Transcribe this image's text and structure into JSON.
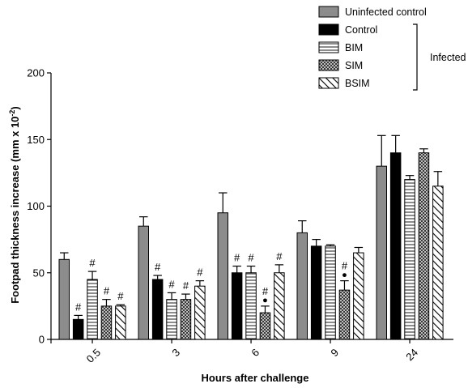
{
  "chart_data": {
    "type": "bar",
    "title": "",
    "xlabel": "Hours after challenge",
    "ylabel": "Footpad thickness increase (mm x 10",
    "ylabel_sup": "-2",
    "ylabel_close": ")",
    "ylim": [
      0,
      200
    ],
    "yticks": [
      "0",
      "50",
      "100",
      "150",
      "200"
    ],
    "yticks_values": [
      0,
      50,
      100,
      150,
      200
    ],
    "categories": [
      "0.5",
      "3",
      "6",
      "9",
      "24"
    ],
    "legend_group_label": "Infected",
    "series": [
      {
        "name": "Uninfected control",
        "pattern": "gray",
        "values": [
          60,
          85,
          95,
          80,
          130
        ],
        "errors": [
          5,
          7,
          15,
          9,
          23
        ],
        "marks": [
          "",
          "",
          "",
          "",
          ""
        ]
      },
      {
        "name": "Control",
        "pattern": "black",
        "values": [
          15,
          45,
          50,
          70,
          140
        ],
        "errors": [
          3,
          3,
          5,
          5,
          13
        ],
        "marks": [
          "#",
          "#",
          "#",
          "",
          ""
        ]
      },
      {
        "name": "BIM",
        "pattern": "hlines",
        "values": [
          45,
          30,
          50,
          70,
          120
        ],
        "errors": [
          6,
          5,
          5,
          1,
          3
        ],
        "marks": [
          "#",
          "#",
          "#",
          "",
          ""
        ]
      },
      {
        "name": "SIM",
        "pattern": "dots",
        "values": [
          25,
          30,
          20,
          37,
          140
        ],
        "errors": [
          5,
          4,
          5,
          7,
          3
        ],
        "marks": [
          "#",
          "#",
          "#•",
          "#•",
          ""
        ]
      },
      {
        "name": "BSIM",
        "pattern": "diag",
        "values": [
          25,
          40,
          50,
          65,
          115
        ],
        "errors": [
          1,
          4,
          6,
          4,
          11
        ],
        "marks": [
          "#",
          "#",
          "#",
          "",
          ""
        ]
      }
    ]
  }
}
